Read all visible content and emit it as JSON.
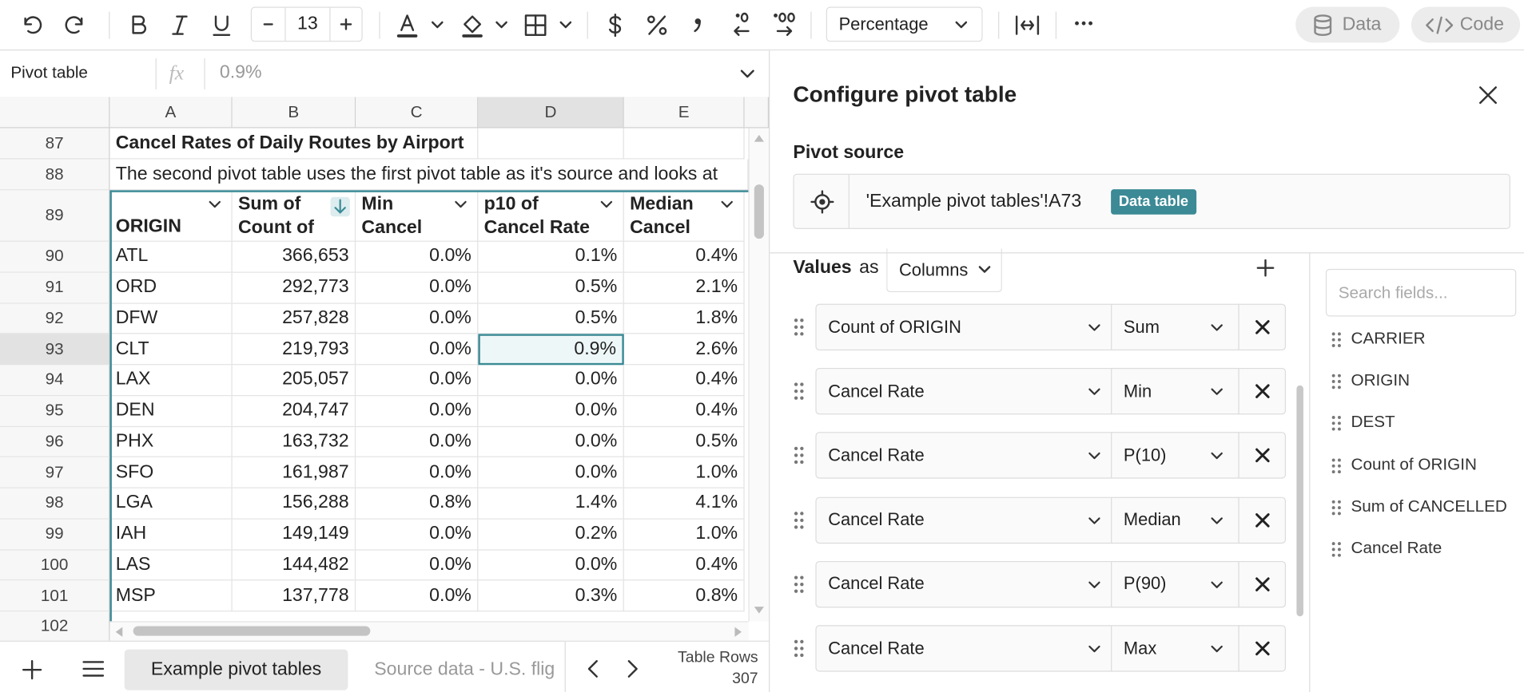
{
  "toolbar": {
    "font_size": "13",
    "number_format": "Percentage",
    "data_button": "Data",
    "code_button": "Code"
  },
  "formula_bar": {
    "cell_name": "Pivot table",
    "fx": "fx",
    "value": "0.9%"
  },
  "sheet": {
    "columns": [
      "A",
      "B",
      "C",
      "D",
      "E"
    ],
    "title_row": {
      "row": "87",
      "text": "Cancel Rates of Daily Routes by Airport"
    },
    "note_row": {
      "row": "88",
      "text": "The second pivot table uses the first pivot table as it's source and looks at"
    },
    "header_row": {
      "row": "89",
      "cells": [
        "ORIGIN",
        "Sum of Count of",
        "Min Cancel",
        "p10 of Cancel Rate",
        "Median Cancel"
      ]
    },
    "rows": [
      {
        "row": "90",
        "cells": [
          "ATL",
          "366,653",
          "0.0%",
          "0.1%",
          "0.4%"
        ]
      },
      {
        "row": "91",
        "cells": [
          "ORD",
          "292,773",
          "0.0%",
          "0.5%",
          "2.1%"
        ]
      },
      {
        "row": "92",
        "cells": [
          "DFW",
          "257,828",
          "0.0%",
          "0.5%",
          "1.8%"
        ]
      },
      {
        "row": "93",
        "cells": [
          "CLT",
          "219,793",
          "0.0%",
          "0.9%",
          "2.6%"
        ]
      },
      {
        "row": "94",
        "cells": [
          "LAX",
          "205,057",
          "0.0%",
          "0.0%",
          "0.4%"
        ]
      },
      {
        "row": "95",
        "cells": [
          "DEN",
          "204,747",
          "0.0%",
          "0.0%",
          "0.4%"
        ]
      },
      {
        "row": "96",
        "cells": [
          "PHX",
          "163,732",
          "0.0%",
          "0.0%",
          "0.5%"
        ]
      },
      {
        "row": "97",
        "cells": [
          "SFO",
          "161,987",
          "0.0%",
          "0.0%",
          "1.0%"
        ]
      },
      {
        "row": "98",
        "cells": [
          "LGA",
          "156,288",
          "0.8%",
          "1.4%",
          "4.1%"
        ]
      },
      {
        "row": "99",
        "cells": [
          "IAH",
          "149,149",
          "0.0%",
          "0.2%",
          "1.0%"
        ]
      },
      {
        "row": "100",
        "cells": [
          "LAS",
          "144,482",
          "0.0%",
          "0.0%",
          "0.4%"
        ]
      },
      {
        "row": "101",
        "cells": [
          "MSP",
          "137,778",
          "0.0%",
          "0.3%",
          "0.8%"
        ]
      }
    ],
    "last_row": "102"
  },
  "tabs": {
    "sheets": [
      "Example pivot tables",
      "Source data - U.S. flig"
    ],
    "table_rows_label": "Table Rows",
    "table_rows": "307"
  },
  "panel": {
    "title": "Configure pivot table",
    "source_label": "Pivot source",
    "source": "'Example pivot tables'!A73",
    "source_badge": "Data table",
    "values_label": "Values",
    "as_label": "as",
    "values_layout": "Columns",
    "values": [
      {
        "field": "Count of ORIGIN",
        "aggregation": "Sum"
      },
      {
        "field": "Cancel Rate",
        "aggregation": "Min"
      },
      {
        "field": "Cancel Rate",
        "aggregation": "P(10)"
      },
      {
        "field": "Cancel Rate",
        "aggregation": "Median"
      },
      {
        "field": "Cancel Rate",
        "aggregation": "P(90)"
      },
      {
        "field": "Cancel Rate",
        "aggregation": "Max"
      }
    ],
    "search_placeholder": "Search fields...",
    "fields": [
      "CARRIER",
      "ORIGIN",
      "DEST",
      "Count of ORIGIN",
      "Sum of CANCELLED",
      "Cancel Rate"
    ]
  }
}
